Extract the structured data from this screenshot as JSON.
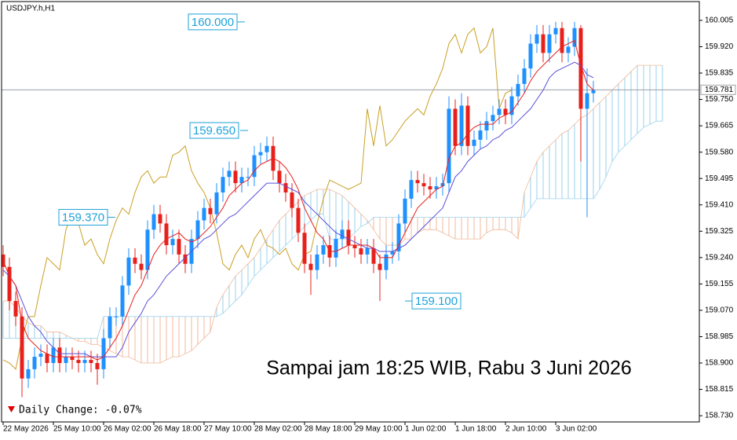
{
  "chart_data": {
    "type": "candlestick",
    "title": "USDJPY.h,H1",
    "categories": [
      "22 May 2026",
      null,
      null,
      null,
      null,
      null,
      null,
      null,
      "25 May 10:00",
      null,
      null,
      null,
      null,
      null,
      null,
      null,
      "26 May 02:00",
      null,
      null,
      null,
      null,
      null,
      null,
      null,
      "26 May 18:00",
      null,
      null,
      null,
      null,
      null,
      null,
      null,
      "27 May 10:00",
      null,
      null,
      null,
      null,
      null,
      null,
      null,
      "28 May 02:00",
      null,
      null,
      null,
      null,
      null,
      null,
      null,
      "28 May 18:00",
      null,
      null,
      null,
      null,
      null,
      null,
      null,
      "29 May 10:00",
      null,
      null,
      null,
      null,
      null,
      null,
      null,
      "1 Jun 02:00",
      null,
      null,
      null,
      null,
      null,
      null,
      null,
      "1 Jun 18:00",
      null,
      null,
      null,
      null,
      null,
      null,
      null,
      "2 Jun 10:00",
      null,
      null,
      null,
      null,
      null,
      null,
      null,
      "3 Jun 02:00",
      null,
      null,
      null,
      null,
      null,
      null,
      null,
      null,
      null,
      null,
      null,
      null,
      null,
      null,
      null,
      null,
      null
    ],
    "open": [
      159.25,
      159.21,
      159.1,
      159.05,
      158.85,
      158.88,
      158.92,
      158.93,
      158.9,
      158.95,
      158.9,
      158.92,
      158.91,
      158.9,
      158.91,
      158.9,
      158.88,
      158.98,
      159.05,
      159.05,
      159.15,
      159.24,
      159.22,
      159.2,
      159.33,
      159.38,
      159.35,
      159.28,
      159.3,
      159.25,
      159.22,
      159.3,
      159.36,
      159.4,
      159.38,
      159.45,
      159.5,
      159.52,
      159.48,
      159.5,
      159.5,
      159.57,
      159.58,
      159.6,
      159.52,
      159.48,
      159.45,
      159.4,
      159.32,
      159.22,
      159.2,
      159.25,
      159.28,
      159.24,
      159.3,
      159.33,
      159.28,
      159.27,
      159.25,
      159.27,
      159.22,
      159.2,
      159.25,
      159.26,
      159.35,
      159.43,
      159.49,
      159.48,
      159.47,
      159.46,
      159.47,
      159.48,
      159.72,
      159.6,
      159.73,
      159.6,
      159.62,
      159.65,
      159.68,
      159.7,
      159.72,
      159.7,
      159.76,
      159.8,
      159.85,
      159.93,
      159.96,
      159.9,
      159.96,
      159.98,
      159.9,
      159.92,
      159.98,
      159.72,
      159.77,
      null,
      null,
      null,
      null,
      null,
      null,
      null,
      null,
      null,
      null,
      null
    ],
    "high": [
      159.28,
      159.24,
      159.13,
      159.08,
      158.91,
      158.95,
      158.96,
      158.96,
      158.98,
      158.98,
      158.95,
      158.95,
      158.94,
      158.94,
      158.94,
      158.93,
      159.01,
      159.08,
      159.08,
      159.18,
      159.27,
      159.27,
      159.25,
      159.36,
      159.41,
      159.41,
      159.38,
      159.33,
      159.33,
      159.28,
      159.33,
      159.39,
      159.43,
      159.43,
      159.48,
      159.53,
      159.55,
      159.55,
      159.53,
      159.53,
      159.6,
      159.61,
      159.63,
      159.63,
      159.55,
      159.51,
      159.48,
      159.43,
      159.35,
      159.25,
      159.28,
      159.31,
      159.31,
      159.33,
      159.36,
      159.36,
      159.31,
      159.3,
      159.3,
      159.3,
      159.25,
      159.28,
      159.29,
      159.38,
      159.46,
      159.52,
      159.52,
      159.51,
      159.5,
      159.5,
      159.51,
      159.76,
      159.75,
      159.77,
      159.76,
      159.65,
      159.68,
      159.71,
      159.73,
      159.75,
      159.75,
      159.79,
      159.83,
      159.88,
      159.96,
      159.99,
      159.99,
      159.99,
      160.0,
      160.0,
      159.95,
      160.0,
      159.99,
      159.85,
      159.81,
      null,
      null,
      null,
      null,
      null,
      null,
      null,
      null,
      null,
      null,
      null
    ],
    "low": [
      159.18,
      159.07,
      159.02,
      158.79,
      158.82,
      158.85,
      158.89,
      158.87,
      158.87,
      158.87,
      158.87,
      158.88,
      158.87,
      158.87,
      158.87,
      158.83,
      158.85,
      158.95,
      159.02,
      159.02,
      159.12,
      159.19,
      159.17,
      159.17,
      159.3,
      159.32,
      159.25,
      159.25,
      159.22,
      159.19,
      159.19,
      159.27,
      159.33,
      159.35,
      159.35,
      159.42,
      159.47,
      159.45,
      159.45,
      159.47,
      159.47,
      159.54,
      159.55,
      159.49,
      159.45,
      159.42,
      159.37,
      159.29,
      159.19,
      159.12,
      159.17,
      159.22,
      159.21,
      159.21,
      159.27,
      159.25,
      159.24,
      159.22,
      159.22,
      159.19,
      159.1,
      159.17,
      159.22,
      159.23,
      159.32,
      159.4,
      159.45,
      159.44,
      159.43,
      159.43,
      159.44,
      159.45,
      159.57,
      159.57,
      159.57,
      159.57,
      159.59,
      159.62,
      159.65,
      159.67,
      159.67,
      159.67,
      159.73,
      159.77,
      159.82,
      159.9,
      159.87,
      159.87,
      159.93,
      159.87,
      159.87,
      159.89,
      159.55,
      159.37,
      159.74,
      null,
      null,
      null,
      null,
      null,
      null,
      null,
      null,
      null,
      null,
      null
    ],
    "close": [
      159.21,
      159.1,
      159.05,
      158.85,
      158.88,
      158.92,
      158.93,
      158.9,
      158.95,
      158.9,
      158.92,
      158.91,
      158.9,
      158.91,
      158.9,
      158.88,
      158.98,
      159.05,
      159.05,
      159.15,
      159.24,
      159.22,
      159.2,
      159.33,
      159.38,
      159.35,
      159.28,
      159.3,
      159.25,
      159.22,
      159.3,
      159.36,
      159.4,
      159.38,
      159.45,
      159.5,
      159.52,
      159.48,
      159.5,
      159.5,
      159.57,
      159.58,
      159.6,
      159.52,
      159.48,
      159.45,
      159.4,
      159.32,
      159.22,
      159.2,
      159.25,
      159.28,
      159.24,
      159.3,
      159.33,
      159.28,
      159.27,
      159.25,
      159.27,
      159.22,
      159.2,
      159.25,
      159.26,
      159.35,
      159.43,
      159.49,
      159.48,
      159.47,
      159.46,
      159.47,
      159.48,
      159.72,
      159.6,
      159.73,
      159.6,
      159.62,
      159.65,
      159.68,
      159.7,
      159.72,
      159.7,
      159.76,
      159.8,
      159.85,
      159.93,
      159.96,
      159.9,
      159.96,
      159.98,
      159.9,
      159.92,
      159.98,
      159.72,
      159.77,
      159.78,
      null,
      null,
      null,
      null,
      null,
      null,
      null,
      null,
      null,
      null,
      null
    ],
    "up_color": "#1e90ff",
    "down_color": "#e8201c",
    "ichimoku": {
      "tenkan": {
        "color": "#e8201c",
        "values": [
          159.23,
          159.18,
          159.15,
          159.03,
          158.98,
          158.96,
          158.94,
          158.93,
          158.92,
          158.92,
          158.92,
          158.92,
          158.92,
          158.92,
          158.92,
          158.91,
          158.92,
          158.95,
          158.98,
          159.02,
          159.07,
          159.12,
          159.15,
          159.2,
          159.25,
          159.28,
          159.3,
          159.31,
          159.32,
          159.3,
          159.29,
          159.3,
          159.32,
          159.34,
          159.37,
          159.4,
          159.44,
          159.46,
          159.48,
          159.49,
          159.52,
          159.54,
          159.55,
          159.56,
          159.55,
          159.53,
          159.5,
          159.46,
          159.4,
          159.36,
          159.32,
          159.3,
          159.26,
          159.26,
          159.27,
          159.28,
          159.28,
          159.28,
          159.28,
          159.27,
          159.24,
          159.24,
          159.24,
          159.28,
          159.32,
          159.36,
          159.4,
          159.42,
          159.44,
          159.46,
          159.47,
          159.56,
          159.6,
          159.61,
          159.64,
          159.66,
          159.67,
          159.67,
          159.67,
          159.69,
          159.7,
          159.71,
          159.74,
          159.77,
          159.81,
          159.84,
          159.86,
          159.88,
          159.9,
          159.92,
          159.93,
          159.94,
          159.86,
          159.8,
          159.78,
          null,
          null,
          null,
          null,
          null,
          null,
          null,
          null,
          null,
          null,
          null
        ]
      },
      "kijun": {
        "color": "#5a50d8",
        "values": [
          159.2,
          159.18,
          159.15,
          159.1,
          159.05,
          159.02,
          159.0,
          158.97,
          158.95,
          158.93,
          158.93,
          158.93,
          158.93,
          158.93,
          158.92,
          158.92,
          158.92,
          158.92,
          158.92,
          158.95,
          159.0,
          159.03,
          159.06,
          159.1,
          159.12,
          159.15,
          159.18,
          159.2,
          159.22,
          159.24,
          159.26,
          159.28,
          159.3,
          159.31,
          159.33,
          159.35,
          159.37,
          159.38,
          159.4,
          159.42,
          159.44,
          159.46,
          159.48,
          159.48,
          159.48,
          159.47,
          159.46,
          159.45,
          159.42,
          159.4,
          159.38,
          159.36,
          159.34,
          159.32,
          159.31,
          159.3,
          159.29,
          159.28,
          159.27,
          159.27,
          159.26,
          159.26,
          159.26,
          159.27,
          159.28,
          159.3,
          159.32,
          159.34,
          159.36,
          159.38,
          159.4,
          159.45,
          159.5,
          159.52,
          159.55,
          159.57,
          159.59,
          159.6,
          159.62,
          159.63,
          159.65,
          159.66,
          159.68,
          159.7,
          159.72,
          159.75,
          159.78,
          159.82,
          159.84,
          159.85,
          159.86,
          159.87,
          159.86,
          159.83,
          159.82,
          null,
          null,
          null,
          null,
          null,
          null,
          null,
          null,
          null,
          null,
          null
        ]
      },
      "chikou": {
        "color": "#c9a024",
        "values": [
          158.91,
          158.9,
          158.88,
          158.98,
          159.05,
          159.05,
          159.15,
          159.24,
          159.22,
          159.2,
          159.33,
          159.38,
          159.35,
          159.28,
          159.3,
          159.25,
          159.22,
          159.3,
          159.36,
          159.4,
          159.38,
          159.45,
          159.5,
          159.52,
          159.48,
          159.5,
          159.5,
          159.57,
          159.58,
          159.6,
          159.52,
          159.48,
          159.45,
          159.4,
          159.32,
          159.22,
          159.2,
          159.25,
          159.28,
          159.24,
          159.3,
          159.33,
          159.28,
          159.27,
          159.25,
          159.27,
          159.22,
          159.2,
          159.25,
          159.26,
          159.35,
          159.43,
          159.49,
          159.48,
          159.47,
          159.46,
          159.47,
          159.48,
          159.72,
          159.6,
          159.73,
          159.6,
          159.62,
          159.65,
          159.68,
          159.7,
          159.72,
          159.7,
          159.76,
          159.8,
          159.85,
          159.93,
          159.96,
          159.9,
          159.96,
          159.98,
          159.9,
          159.92,
          159.98,
          159.72,
          159.77,
          159.78,
          null,
          null,
          null,
          null,
          null,
          null,
          null,
          null,
          null,
          null,
          null,
          null,
          null,
          null,
          null,
          null,
          null,
          null,
          null,
          null,
          null,
          null,
          null,
          null
        ]
      },
      "senkou_a": {
        "color": "#f0b898",
        "values": [
          159.1,
          159.1,
          159.08,
          159.05,
          159.03,
          159.02,
          159.02,
          159.0,
          159.0,
          159.0,
          158.99,
          158.98,
          158.97,
          158.97,
          158.96,
          158.96,
          158.95,
          158.94,
          158.93,
          158.92,
          158.92,
          158.91,
          158.9,
          158.9,
          158.9,
          158.9,
          158.91,
          158.92,
          158.92,
          158.93,
          158.94,
          158.96,
          158.98,
          159.0,
          159.08,
          159.12,
          159.15,
          159.18,
          159.2,
          159.22,
          159.24,
          159.27,
          159.3,
          159.33,
          159.36,
          159.38,
          159.4,
          159.42,
          159.44,
          159.45,
          159.46,
          159.46,
          159.46,
          159.45,
          159.44,
          159.42,
          159.4,
          159.38,
          159.36,
          159.33,
          159.3,
          159.28,
          159.28,
          159.28,
          159.3,
          159.3,
          159.32,
          159.33,
          159.33,
          159.33,
          159.32,
          159.31,
          159.3,
          159.3,
          159.3,
          159.3,
          159.3,
          159.32,
          159.33,
          159.33,
          159.33,
          159.32,
          159.3,
          159.45,
          159.5,
          159.55,
          159.58,
          159.6,
          159.62,
          159.64,
          159.65,
          159.67,
          159.69,
          159.7,
          159.72,
          159.74,
          159.76,
          159.78,
          159.8,
          159.82,
          159.84,
          159.86,
          159.86,
          159.86,
          159.86,
          159.86
        ]
      },
      "senkou_b": {
        "color": "#9fd4ec",
        "values": [
          158.98,
          158.98,
          158.98,
          158.98,
          158.98,
          158.98,
          158.98,
          158.98,
          158.98,
          158.98,
          158.98,
          158.98,
          158.98,
          158.98,
          158.98,
          158.98,
          159.05,
          159.05,
          159.05,
          159.05,
          159.05,
          159.05,
          159.05,
          159.05,
          159.05,
          159.05,
          159.05,
          159.05,
          159.05,
          159.05,
          159.05,
          159.05,
          159.05,
          159.05,
          159.05,
          159.06,
          159.08,
          159.1,
          159.12,
          159.15,
          159.18,
          159.2,
          159.22,
          159.24,
          159.26,
          159.28,
          159.3,
          159.32,
          159.34,
          159.36,
          159.38,
          159.38,
          159.3,
          159.3,
          159.3,
          159.3,
          159.32,
          159.34,
          159.35,
          159.37,
          159.37,
          159.37,
          159.37,
          159.37,
          159.37,
          159.37,
          159.37,
          159.37,
          159.37,
          159.37,
          159.37,
          159.37,
          159.37,
          159.37,
          159.37,
          159.37,
          159.37,
          159.37,
          159.37,
          159.37,
          159.37,
          159.37,
          159.37,
          159.37,
          159.4,
          159.43,
          159.43,
          159.43,
          159.43,
          159.43,
          159.43,
          159.43,
          159.43,
          159.43,
          159.43,
          159.46,
          159.5,
          159.55,
          159.58,
          159.6,
          159.62,
          159.64,
          159.66,
          159.67,
          159.68,
          159.68
        ]
      },
      "cloud_up_color": "#a9d9ef",
      "cloud_down_color": "#f2c4ad"
    },
    "ylim": [
      158.71,
      160.058
    ],
    "yticks": [
      160.005,
      {
        "value": 159.92,
        "label": "159.920"
      },
      159.835,
      {
        "value": 159.75,
        "label": "159.750"
      },
      159.665,
      {
        "value": 159.58,
        "label": "159.580"
      },
      159.495,
      {
        "value": 159.41,
        "label": "159.410"
      },
      159.325,
      {
        "value": 159.24,
        "label": "159.240"
      },
      159.155,
      {
        "value": 159.07,
        "label": "159.070"
      },
      158.985,
      {
        "value": 158.9,
        "label": "158.900"
      },
      158.815,
      {
        "value": 158.73,
        "label": "158.730"
      }
    ],
    "last_price": 159.781,
    "price_levels": [
      {
        "value": 160.0,
        "label": "160.000"
      },
      {
        "value": 159.65,
        "label": "159.650"
      },
      {
        "value": 159.37,
        "label": "159.370"
      },
      {
        "value": 159.1,
        "label": "159.100"
      }
    ],
    "level_color": "#1fa2d8",
    "note": "Sampai jam 18:25 WIB, Rabu 3 Juni 2026",
    "note_color": "#daa520",
    "daily_change": "Daily Change: -0.07%",
    "daily_change_color": "#e00000"
  }
}
